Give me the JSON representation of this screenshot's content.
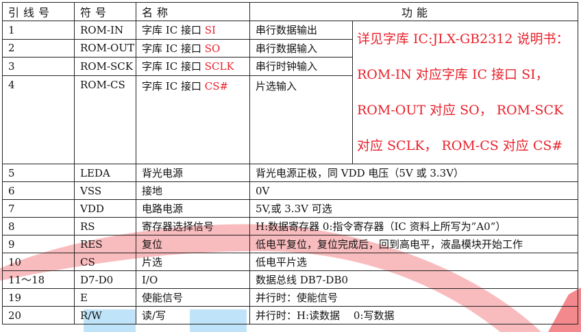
{
  "header": {
    "pin": "引线号",
    "symbol": "符号",
    "name": "名称",
    "function": "功能"
  },
  "accent_color": "#e8202a",
  "rom_rows": [
    {
      "pin": "1",
      "symbol": "ROM-IN",
      "name": "字库 IC 接口",
      "name_red": "SI",
      "func": "串行数据输出"
    },
    {
      "pin": "2",
      "symbol": "ROM-OUT",
      "name": "字库 IC 接口",
      "name_red": "SO",
      "func": "串行数据输入"
    },
    {
      "pin": "3",
      "symbol": "ROM-SCK",
      "name": "字库 IC 接口",
      "name_red": "SCLK",
      "func": "串行时钟输入"
    },
    {
      "pin": "4",
      "symbol": "ROM-CS",
      "name": "字库 IC 接口",
      "name_red": "CS#",
      "func": "片选输入"
    }
  ],
  "rom_note": "详见字库 IC:JLX-GB2312 说明书： ROM-IN 对应字库 IC 接口 SI，ROM-OUT 对应 SO， ROM-SCK 对应 SCLK， ROM-CS 对应 CS#",
  "rows": [
    {
      "pin": "5",
      "symbol": "LEDA",
      "name": "背光电源",
      "func": "背光电源正极，同 VDD 电压（5V 或 3.3V）"
    },
    {
      "pin": "6",
      "symbol": "VSS",
      "name": "接地",
      "func": "0V"
    },
    {
      "pin": "7",
      "symbol": "VDD",
      "name": "电路电源",
      "func": "5V,或 3.3V 可选"
    },
    {
      "pin": "8",
      "symbol": "RS",
      "name": "寄存器选择信号",
      "func": "H:数据寄存器 0:指令寄存器（IC 资料上所写为”A0”）"
    },
    {
      "pin": "9",
      "symbol": "RES",
      "name": "复位",
      "func": "低电平复位，复位完成后，回到高电平，液晶模块开始工作"
    },
    {
      "pin": "10",
      "symbol": "CS",
      "name": "片选",
      "func": "低电平片选"
    },
    {
      "pin": "11～18",
      "symbol": "D7-D0",
      "name": "I/O",
      "func": "数据总线 DB7-DB0"
    },
    {
      "pin": "19",
      "symbol": "E",
      "name": "使能信号",
      "func": "并行时：使能信号"
    },
    {
      "pin": "20",
      "symbol": "R/W",
      "name": "读/写",
      "func": "并行时：H:读数据　 0:写数据"
    }
  ]
}
